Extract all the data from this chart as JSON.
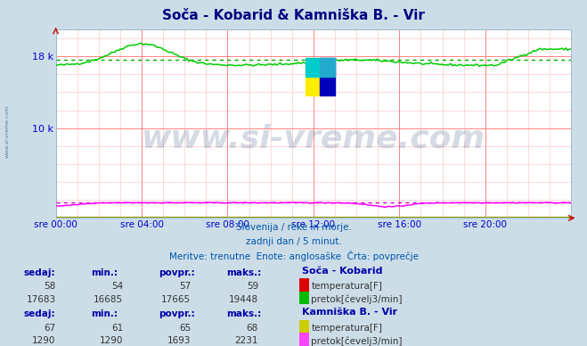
{
  "title": "Soča - Kobarid & Kamniška B. - Vir",
  "subtitle1": "Slovenija / reke in morje.",
  "subtitle2": "zadnji dan / 5 minut.",
  "subtitle3": "Meritve: trenutne  Enote: anglosaške  Črta: povprečje",
  "bg_color": "#ccdde8",
  "plot_bg_color": "#ffffff",
  "xlabel_color": "#0000cc",
  "title_color": "#000080",
  "info_text_color": "#0055aa",
  "xtick_labels": [
    "sre 00:00",
    "sre 04:00",
    "sre 08:00",
    "sre 12:00",
    "sre 16:00",
    "sre 20:00"
  ],
  "xtick_positions": [
    0,
    4,
    8,
    12,
    16,
    20
  ],
  "ylim": [
    0,
    21000
  ],
  "ytick_positions": [
    10000,
    18000
  ],
  "ytick_labels": [
    "10 k",
    "18 k"
  ],
  "xlim": [
    0,
    24
  ],
  "watermark_text": "www.si-vreme.com",
  "watermark_color": "#1a3a6a",
  "watermark_alpha": 0.18,
  "watermark_fontsize": 26,
  "green_line_color": "#00cc00",
  "green_avg_color": "#00aa00",
  "magenta_line_color": "#ff00ff",
  "magenta_avg_color": "#cc00cc",
  "red_line_color": "#dd0000",
  "yellow_line_color": "#cccc00",
  "table_header_color": "#0000aa",
  "table_val_color": "#333333",
  "socha_temp_color": "#dd0000",
  "socha_flow_color": "#00bb00",
  "kamb_temp_color": "#cccc00",
  "kamb_flow_color": "#ff44ff",
  "sidebar_text_color": "#336688",
  "socha_sedaj": 58,
  "socha_min": 54,
  "socha_povpr": 57,
  "socha_maks": 59,
  "socha_flow_sedaj": 17683,
  "socha_flow_min": 16685,
  "socha_flow_povpr": 17665,
  "socha_flow_maks": 19448,
  "kamb_sedaj": 67,
  "kamb_min": 61,
  "kamb_povpr": 65,
  "kamb_maks": 68,
  "kamb_flow_sedaj": 1290,
  "kamb_flow_min": 1290,
  "kamb_flow_povpr": 1693,
  "kamb_flow_maks": 2231,
  "green_avg": 17665,
  "magenta_avg": 1693
}
